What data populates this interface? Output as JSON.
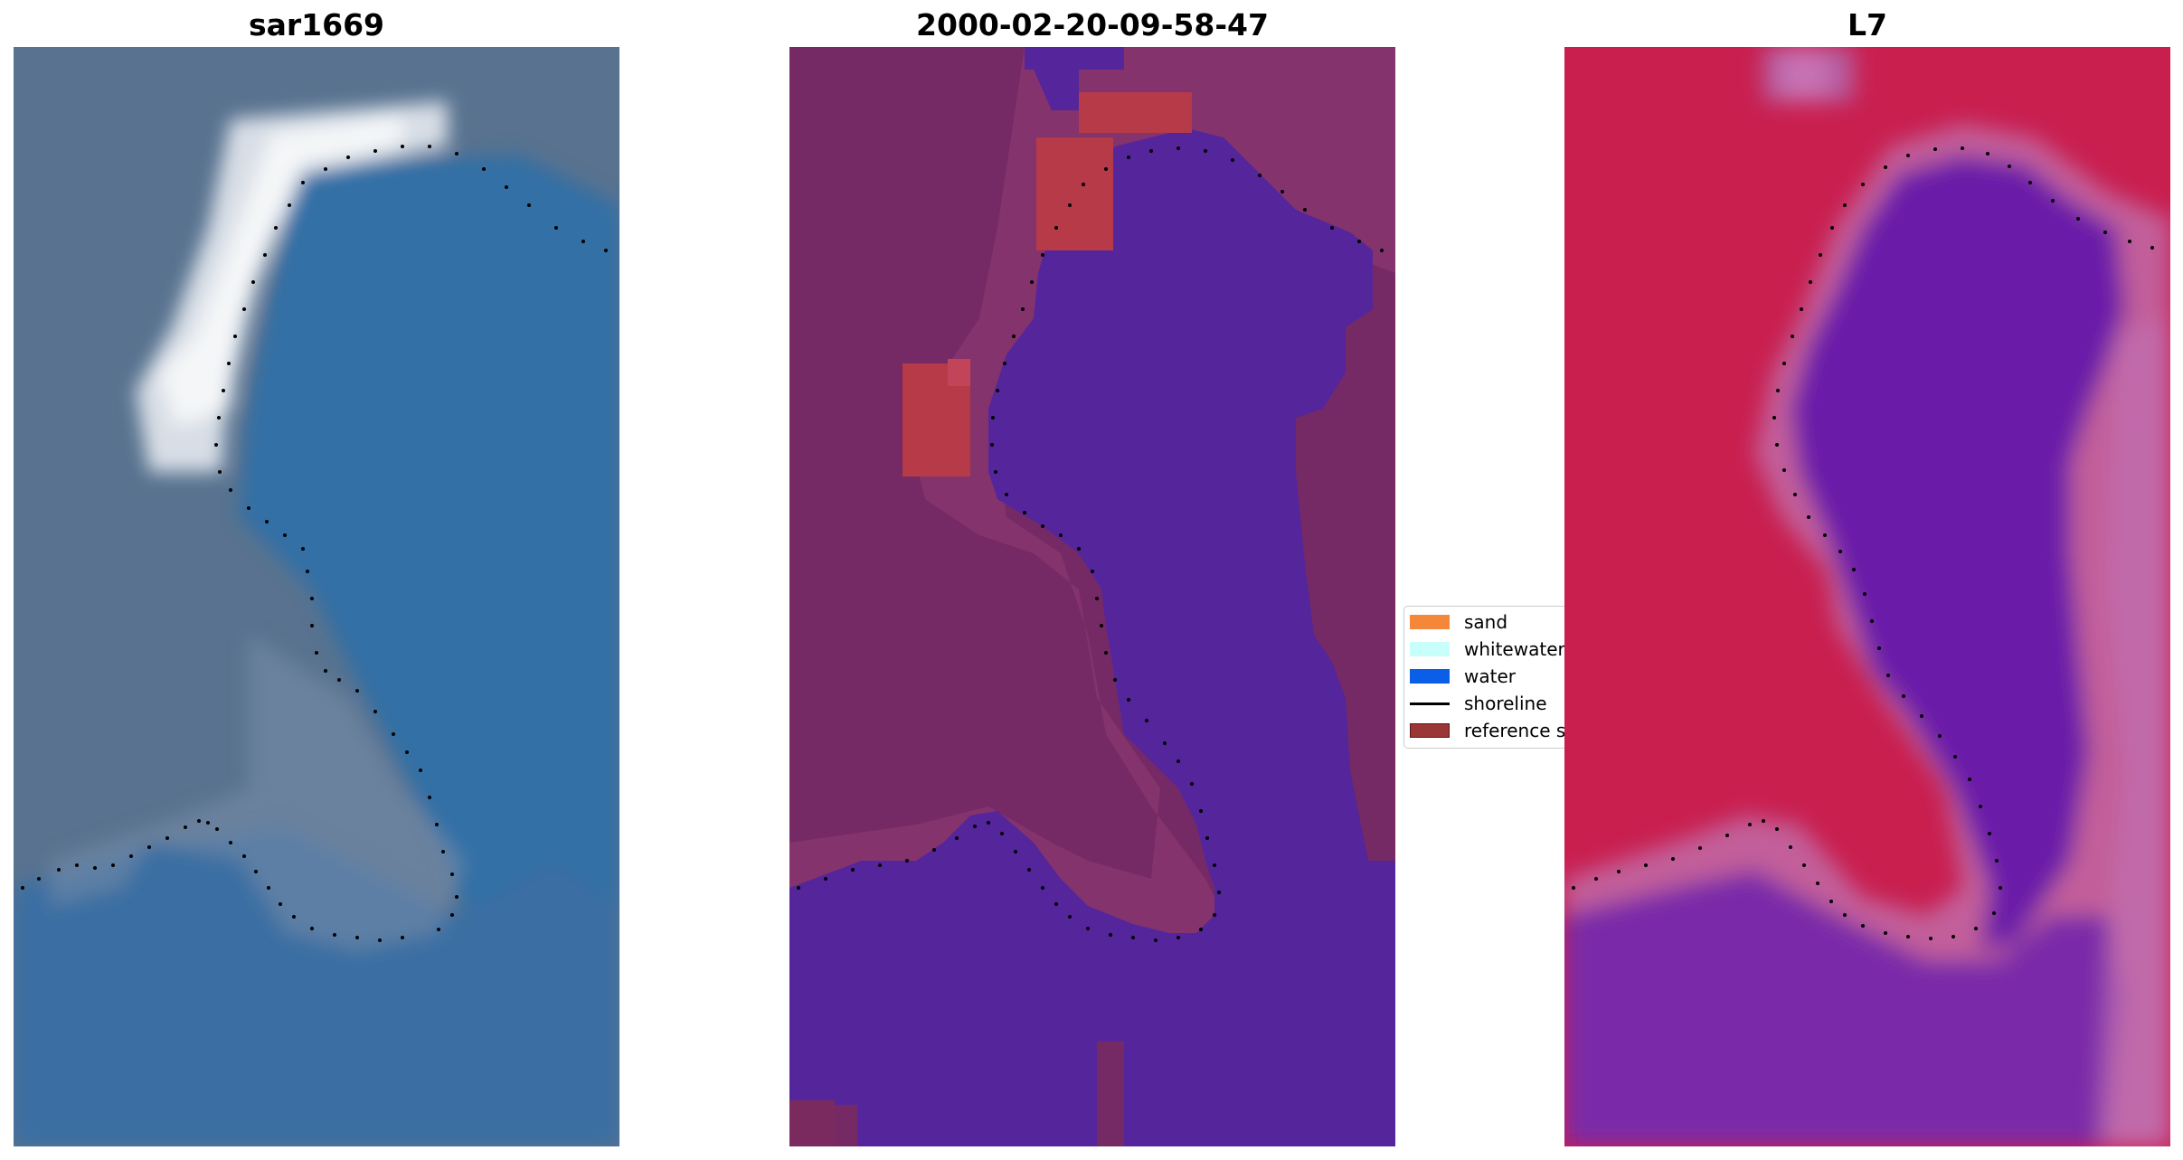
{
  "panels": [
    {
      "id": "rgb",
      "title": "sar1669"
    },
    {
      "id": "classified",
      "title": "2000-02-20-09-58-47"
    },
    {
      "id": "index",
      "title": "L7"
    }
  ],
  "legend": {
    "items": [
      {
        "key": "sand",
        "label": "sand",
        "color": "#f5873a",
        "kind": "patch"
      },
      {
        "key": "whitewater",
        "label": "whitewater",
        "color": "#c8fffb",
        "kind": "patch"
      },
      {
        "key": "water",
        "label": "water",
        "color": "#0a5ee8",
        "kind": "patch"
      },
      {
        "key": "shoreline",
        "label": "shoreline",
        "color": "#000000",
        "kind": "line"
      },
      {
        "key": "reference",
        "label": "reference shoreline",
        "color": "#9b3636",
        "kind": "patch"
      }
    ]
  },
  "colors": {
    "land_rgb": "#5a7393",
    "water_rgb": "#336ba1",
    "whitewater_rgb": "#f0f2f4",
    "land_class": "#762a65",
    "water_class": "#55259c",
    "sand_class": "#b63a48",
    "land_index": "#c81f4f",
    "water_index": "#6a1ea8",
    "edge_index": "#c25f9a",
    "shoreline": "#000000"
  }
}
